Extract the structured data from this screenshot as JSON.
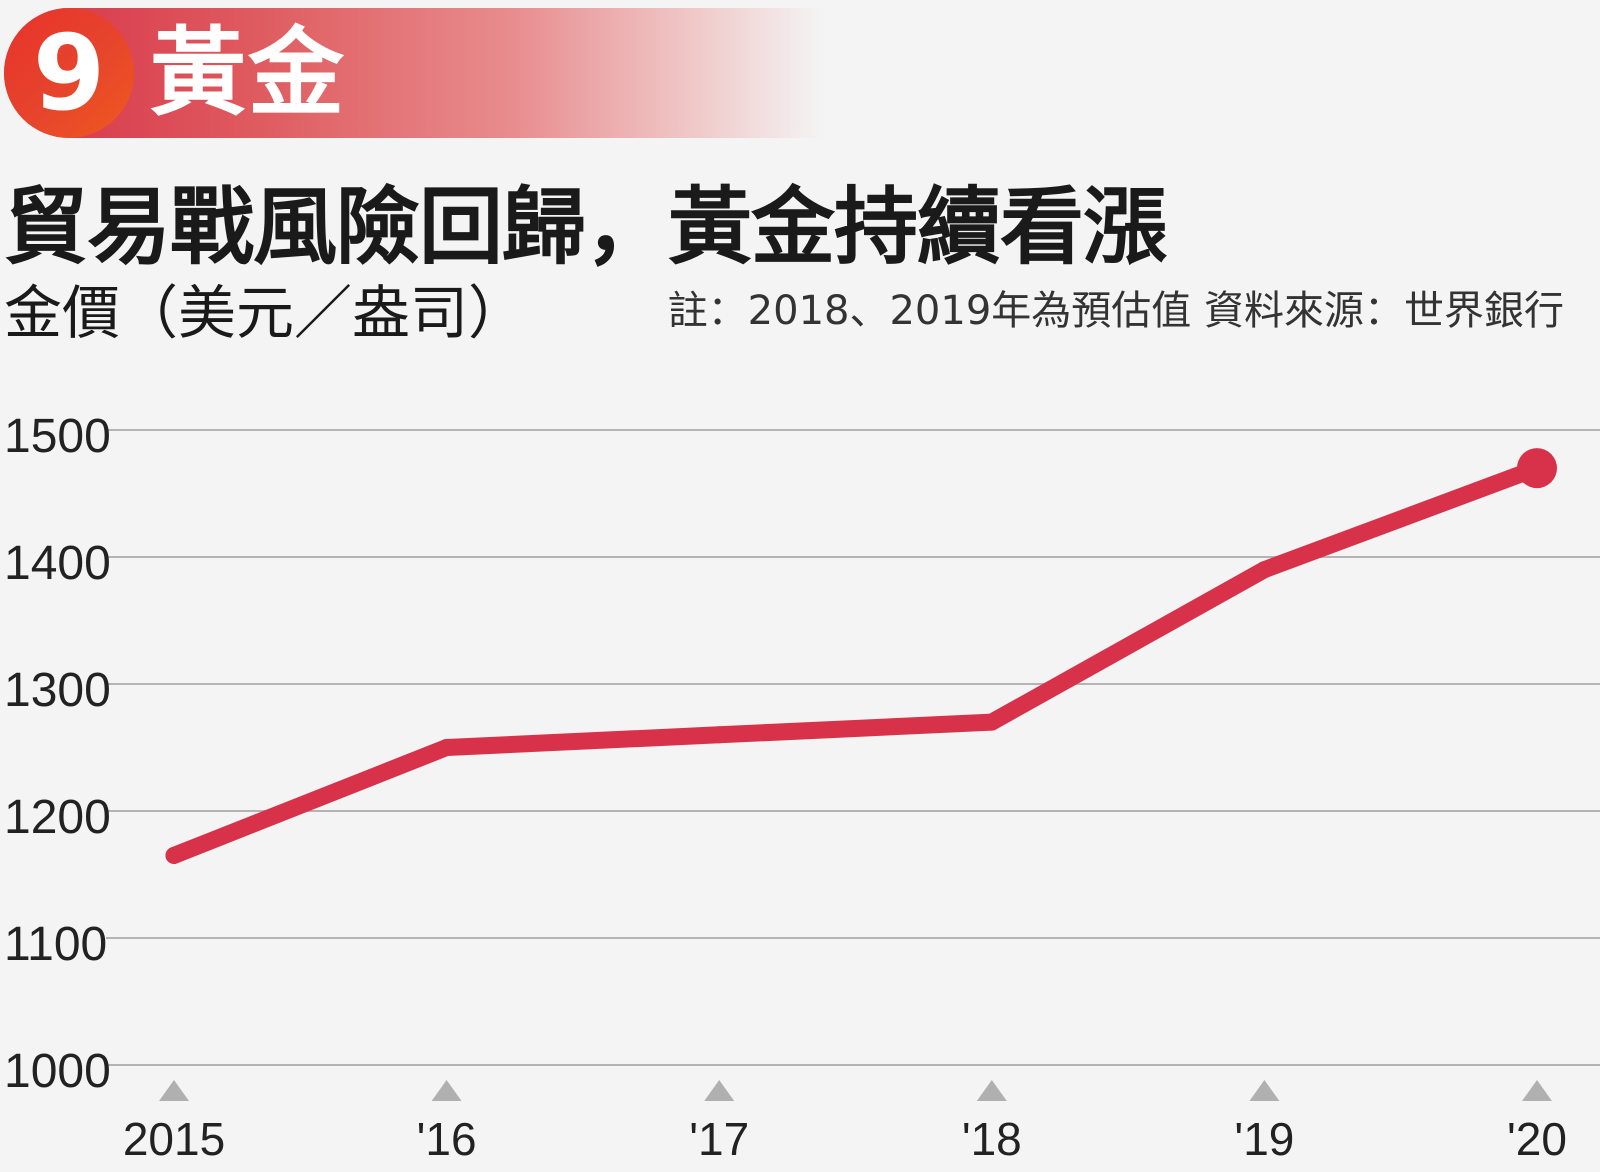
{
  "header": {
    "badge_number": "9",
    "section_title": "黃金",
    "headline": "貿易戰風險回歸，黃金持續看漲",
    "unit_label": "金價（美元／盎司）",
    "note": "註：2018、2019年為預估值  資料來源：世界銀行"
  },
  "colors": {
    "line": "#d8324a",
    "badge": "#e8322c",
    "grid": "#b4b4b4",
    "tick_marker": "#b0b0b0"
  },
  "chart_data": {
    "type": "line",
    "categories": [
      "2015",
      "'16",
      "'17",
      "'18",
      "'19",
      "'20"
    ],
    "series": [
      {
        "values": [
          1165,
          1250,
          1260,
          1270,
          1390,
          1470
        ]
      }
    ],
    "yticks": [
      "1500",
      "1400",
      "1300",
      "1200",
      "1100",
      "1000"
    ],
    "ylim": [
      1000,
      1500
    ],
    "grid": true,
    "endpoint_marker": true
  }
}
